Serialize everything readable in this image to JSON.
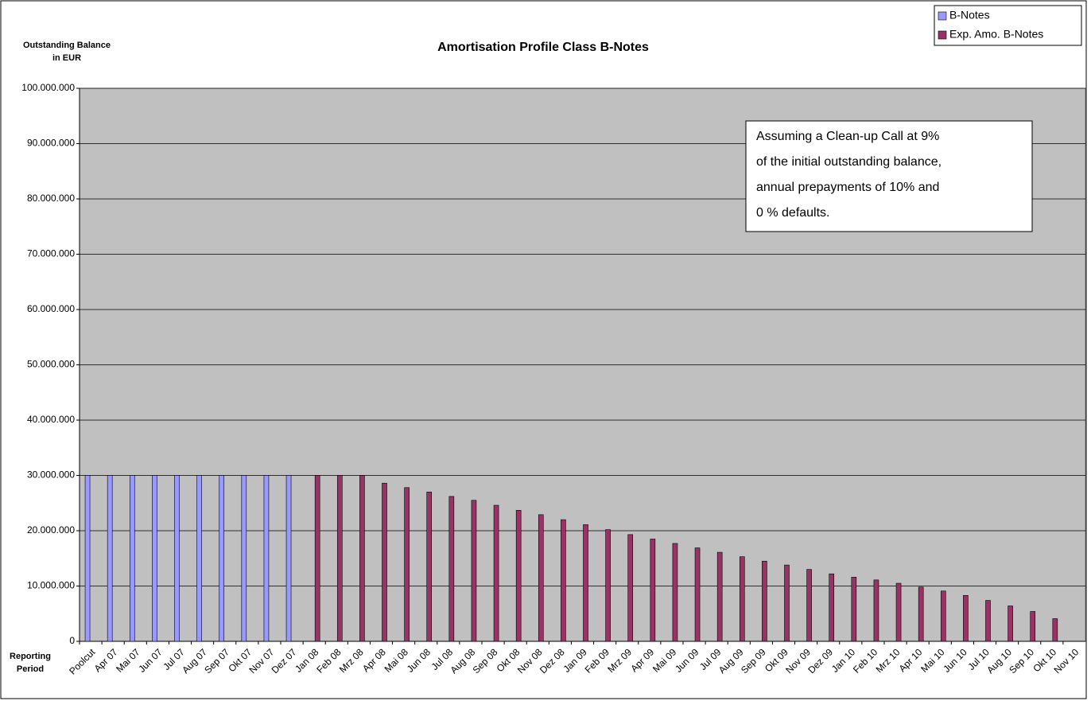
{
  "chart_data": {
    "type": "bar",
    "title": "Amortisation Profile Class B-Notes",
    "y_label_lines": [
      "Outstanding Balance",
      "in EUR"
    ],
    "x_label_lines": [
      "Reporting",
      "Period"
    ],
    "annotation_lines": [
      "Assuming a Clean-up Call at 9%",
      "of the initial outstanding balance,",
      "annual prepayments of 10% and",
      "0 % defaults."
    ],
    "categories": [
      "Poolcut",
      "Apr 07",
      "Mai 07",
      "Jun 07",
      "Jul 07",
      "Aug 07",
      "Sep 07",
      "Okt 07",
      "Nov 07",
      "Dez 07",
      "Jan 08",
      "Feb 08",
      "Mrz 08",
      "Apr 08",
      "Mai 08",
      "Jun 08",
      "Jul 08",
      "Aug 08",
      "Sep 08",
      "Okt 08",
      "Nov 08",
      "Dez 08",
      "Jan 09",
      "Feb 09",
      "Mrz 09",
      "Apr 09",
      "Mai 09",
      "Jun 09",
      "Jul 09",
      "Aug 09",
      "Sep 09",
      "Okt 09",
      "Nov 09",
      "Dez 09",
      "Jan 10",
      "Feb 10",
      "Mrz 10",
      "Apr 10",
      "Mai 10",
      "Jun 10",
      "Jul 10",
      "Aug 10",
      "Sep 10",
      "Okt 10",
      "Nov 10"
    ],
    "series": [
      {
        "name": "B-Notes",
        "color": "#9999ff",
        "values": [
          30000000,
          30000000,
          30000000,
          30000000,
          30000000,
          30000000,
          30000000,
          30000000,
          30000000,
          30000000,
          null,
          null,
          null,
          null,
          null,
          null,
          null,
          null,
          null,
          null,
          null,
          null,
          null,
          null,
          null,
          null,
          null,
          null,
          null,
          null,
          null,
          null,
          null,
          null,
          null,
          null,
          null,
          null,
          null,
          null,
          null,
          null,
          null,
          null,
          null
        ]
      },
      {
        "name": "Exp. Amo. B-Notes",
        "color": "#993366",
        "values": [
          null,
          null,
          null,
          null,
          null,
          null,
          null,
          null,
          null,
          null,
          30000000,
          30000000,
          30000000,
          28600000,
          27800000,
          27000000,
          26200000,
          25500000,
          24600000,
          23700000,
          22900000,
          22000000,
          21100000,
          20200000,
          19300000,
          18500000,
          17700000,
          16900000,
          16100000,
          15300000,
          14500000,
          13800000,
          13000000,
          12200000,
          11600000,
          11100000,
          10500000,
          9800000,
          9100000,
          8300000,
          7400000,
          6400000,
          5400000,
          4100000,
          null
        ]
      }
    ],
    "ylim": [
      0,
      100000000
    ],
    "yticks": [
      0,
      {
        "value": 10000000,
        "label": "10.000.000"
      },
      {
        "value": 20000000,
        "label": "20.000.000"
      },
      {
        "value": 30000000,
        "label": "30.000.000"
      },
      {
        "value": 40000000,
        "label": "40.000.000"
      },
      {
        "value": 50000000,
        "label": "50.000.000"
      },
      {
        "value": 60000000,
        "label": "60.000.000"
      },
      {
        "value": 70000000,
        "label": "70.000.000"
      },
      {
        "value": 80000000,
        "label": "80.000.000"
      },
      {
        "value": 90000000,
        "label": "90.000.000"
      },
      {
        "value": 100000000,
        "label": "100.000.000"
      }
    ],
    "grid": true,
    "plot_background": "#c0c0c0",
    "legend": "top-right"
  }
}
